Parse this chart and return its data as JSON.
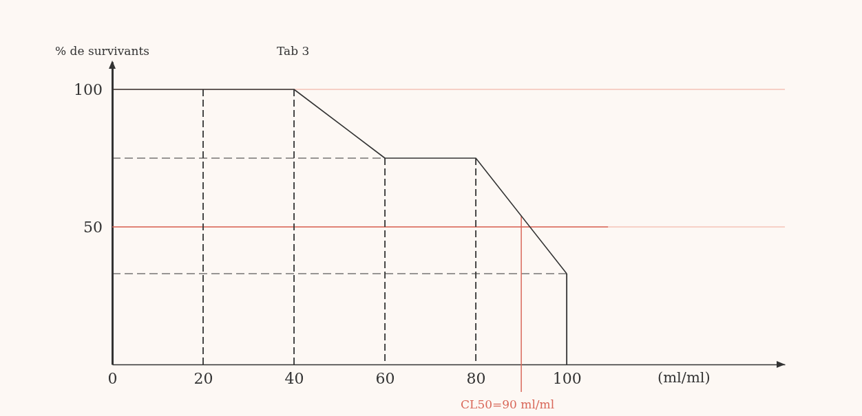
{
  "chart_data": {
    "type": "line",
    "title": "Tab 3",
    "ylabel": "% de survivants",
    "xlabel": "(ml/ml)",
    "x": [
      0,
      20,
      40,
      60,
      80,
      100
    ],
    "series": [
      {
        "color": "#333333",
        "values": [
          100,
          100,
          100,
          75,
          75,
          33
        ]
      }
    ],
    "xlim": [
      0,
      148
    ],
    "ylim": [
      0,
      110
    ],
    "xticks": [
      0,
      20,
      40,
      60,
      80,
      100
    ],
    "yticks": [
      50,
      100
    ],
    "ref_lines": [
      {
        "axis": "y",
        "value": 50,
        "color": "#d9685a"
      },
      {
        "axis": "x",
        "value": 20,
        "color": "#333333",
        "line_style": "dashed"
      },
      {
        "axis": "x",
        "value": 40,
        "color": "#333333",
        "line_style": "dashed"
      },
      {
        "axis": "x",
        "value": 60,
        "color": "#333333",
        "line_style": "dashed"
      },
      {
        "axis": "x",
        "value": 80,
        "color": "#333333",
        "line_style": "dashed"
      },
      {
        "axis": "x",
        "value": 100,
        "color": "#333333",
        "line_style": "solid"
      },
      {
        "axis": "y",
        "value": 75,
        "color": "#333333",
        "line_style": "dashed"
      },
      {
        "axis": "y",
        "value": 33,
        "color": "#333333",
        "line_style": "dashed"
      },
      {
        "axis": "x",
        "value": 90,
        "label": "CL50=90 ml/ml",
        "color": "#d9685a"
      }
    ],
    "grid": "y",
    "marker": "none",
    "line_style": "solid"
  }
}
